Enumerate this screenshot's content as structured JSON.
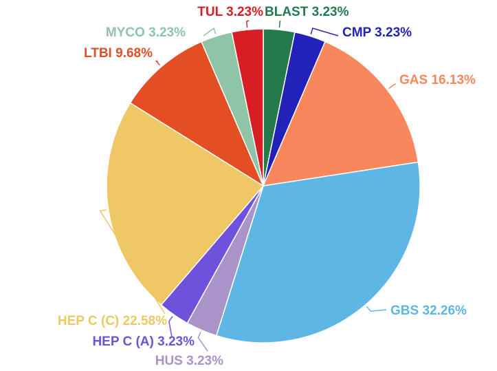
{
  "chart_data": {
    "type": "pie",
    "categories": [
      "BLAST",
      "CMP",
      "GAS",
      "GBS",
      "HUS",
      "HEP C (A)",
      "HEP C (C)",
      "LTBI",
      "MYCO",
      "TUL"
    ],
    "values": [
      3.23,
      3.23,
      16.13,
      32.26,
      3.23,
      3.23,
      22.58,
      9.68,
      3.23,
      3.23
    ],
    "value_labels": [
      "3.23%",
      "3.23%",
      "16.13%",
      "32.26%",
      "3.23%",
      "3.23%",
      "22.58%",
      "9.68%",
      "3.23%",
      "3.23%"
    ],
    "colors": [
      "#247a4d",
      "#2222b8",
      "#f9875c",
      "#5db6e4",
      "#a993c9",
      "#6e52dc",
      "#efc865",
      "#e44e25",
      "#8fc5a6",
      "#d81e24"
    ]
  }
}
